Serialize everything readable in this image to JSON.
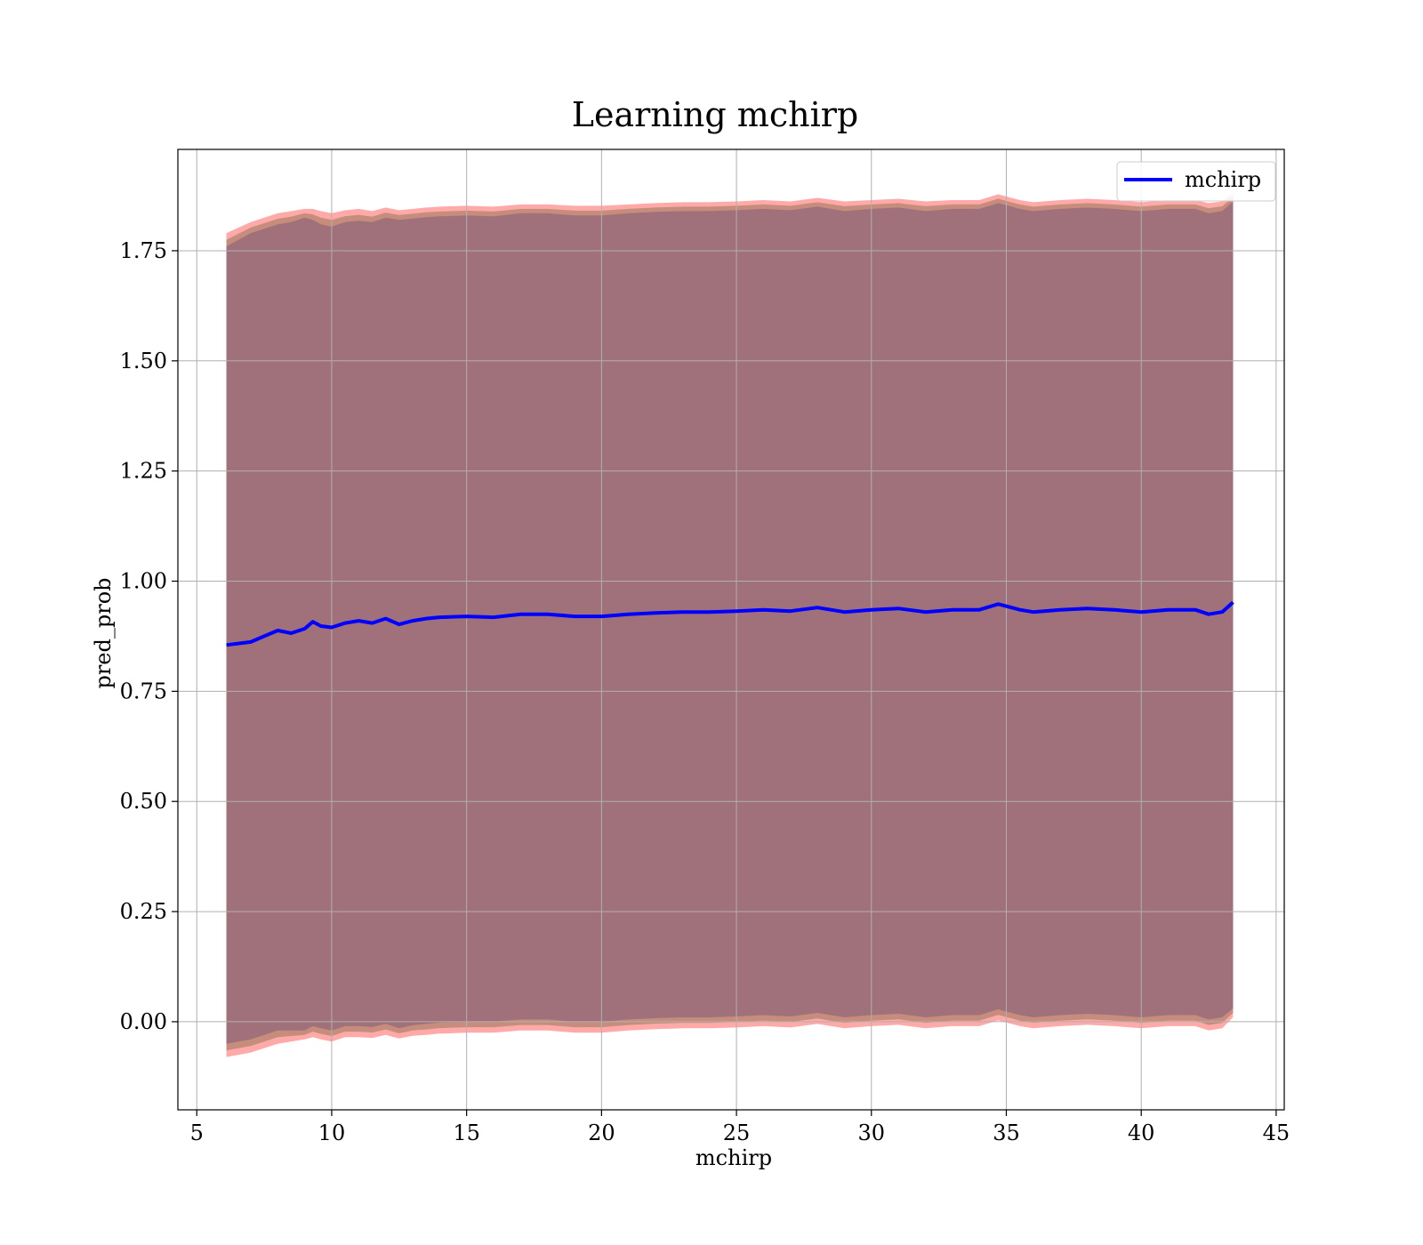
{
  "chart_data": {
    "type": "line",
    "title": "Learning mchirp",
    "xlabel": "mchirp",
    "ylabel": "pred_prob",
    "xlim": [
      4.3,
      45.3
    ],
    "ylim": [
      -0.2,
      1.98
    ],
    "xticks": [
      5,
      10,
      15,
      20,
      25,
      30,
      35,
      40,
      45
    ],
    "yticks": [
      0.0,
      0.25,
      0.5,
      0.75,
      1.0,
      1.25,
      1.5,
      1.75
    ],
    "ytick_labels": [
      "0.00",
      "0.25",
      "0.50",
      "0.75",
      "1.00",
      "1.25",
      "1.50",
      "1.75"
    ],
    "grid": true,
    "legend": {
      "location": "top-right",
      "entries": [
        "mchirp"
      ]
    },
    "series": [
      {
        "name": "mchirp",
        "color": "#0000ff",
        "x": [
          6.1,
          7.0,
          7.5,
          8.0,
          8.5,
          9.0,
          9.3,
          9.6,
          10.0,
          10.5,
          11.0,
          11.5,
          12.0,
          12.5,
          13.0,
          13.5,
          14.0,
          15.0,
          16.0,
          17.0,
          18.0,
          19.0,
          20.0,
          21.0,
          22.0,
          23.0,
          24.0,
          25.0,
          26.0,
          27.0,
          28.0,
          29.0,
          30.0,
          31.0,
          32.0,
          33.0,
          34.0,
          34.7,
          35.5,
          36.0,
          37.0,
          38.0,
          39.0,
          40.0,
          41.0,
          42.0,
          42.5,
          43.0,
          43.4
        ],
        "mean": [
          0.855,
          0.862,
          0.875,
          0.888,
          0.882,
          0.892,
          0.908,
          0.898,
          0.895,
          0.905,
          0.91,
          0.905,
          0.915,
          0.902,
          0.91,
          0.915,
          0.918,
          0.92,
          0.918,
          0.925,
          0.925,
          0.92,
          0.92,
          0.925,
          0.928,
          0.93,
          0.93,
          0.932,
          0.935,
          0.932,
          0.94,
          0.93,
          0.935,
          0.938,
          0.93,
          0.935,
          0.935,
          0.948,
          0.935,
          0.93,
          0.935,
          0.938,
          0.935,
          0.93,
          0.935,
          0.935,
          0.925,
          0.93,
          0.952
        ],
        "band_inner": {
          "upper": [
            1.76,
            1.79,
            1.8,
            1.81,
            1.815,
            1.825,
            1.82,
            1.81,
            1.805,
            1.815,
            1.818,
            1.815,
            1.825,
            1.82,
            1.823,
            1.826,
            1.828,
            1.83,
            1.828,
            1.835,
            1.835,
            1.83,
            1.83,
            1.835,
            1.838,
            1.84,
            1.84,
            1.842,
            1.845,
            1.842,
            1.85,
            1.84,
            1.845,
            1.848,
            1.84,
            1.845,
            1.845,
            1.858,
            1.845,
            1.84,
            1.845,
            1.848,
            1.845,
            1.84,
            1.845,
            1.845,
            1.835,
            1.84,
            1.862
          ],
          "lower": [
            -0.05,
            -0.04,
            -0.03,
            -0.02,
            -0.02,
            -0.02,
            -0.01,
            -0.015,
            -0.02,
            -0.01,
            -0.01,
            -0.012,
            -0.005,
            -0.015,
            -0.008,
            -0.005,
            -0.002,
            0.0,
            0.0,
            0.005,
            0.005,
            0.0,
            0.0,
            0.005,
            0.008,
            0.01,
            0.01,
            0.012,
            0.015,
            0.012,
            0.02,
            0.01,
            0.015,
            0.018,
            0.01,
            0.015,
            0.015,
            0.028,
            0.015,
            0.01,
            0.015,
            0.018,
            0.015,
            0.01,
            0.015,
            0.015,
            0.005,
            0.01,
            0.03
          ]
        },
        "band_outer": {
          "upper": [
            1.79,
            1.815,
            1.825,
            1.835,
            1.84,
            1.845,
            1.845,
            1.84,
            1.835,
            1.842,
            1.845,
            1.84,
            1.848,
            1.842,
            1.845,
            1.848,
            1.85,
            1.852,
            1.85,
            1.855,
            1.855,
            1.852,
            1.852,
            1.855,
            1.858,
            1.86,
            1.86,
            1.862,
            1.865,
            1.862,
            1.87,
            1.862,
            1.865,
            1.868,
            1.862,
            1.865,
            1.865,
            1.878,
            1.865,
            1.86,
            1.865,
            1.868,
            1.865,
            1.86,
            1.865,
            1.865,
            1.858,
            1.862,
            1.88
          ],
          "lower": [
            -0.08,
            -0.07,
            -0.06,
            -0.05,
            -0.045,
            -0.04,
            -0.035,
            -0.04,
            -0.045,
            -0.035,
            -0.035,
            -0.037,
            -0.03,
            -0.038,
            -0.032,
            -0.03,
            -0.027,
            -0.025,
            -0.025,
            -0.02,
            -0.02,
            -0.025,
            -0.025,
            -0.02,
            -0.017,
            -0.015,
            -0.015,
            -0.013,
            -0.01,
            -0.013,
            -0.005,
            -0.015,
            -0.01,
            -0.007,
            -0.015,
            -0.01,
            -0.01,
            0.003,
            -0.01,
            -0.015,
            -0.01,
            -0.007,
            -0.01,
            -0.015,
            -0.01,
            -0.01,
            -0.02,
            -0.015,
            0.01
          ]
        }
      }
    ],
    "colors": {
      "line": "#0000ff",
      "band_inner": "#a1717b",
      "band_middle": "#c08a78",
      "band_outer": "#ff9a9a",
      "grid": "#b0b0b0"
    }
  }
}
